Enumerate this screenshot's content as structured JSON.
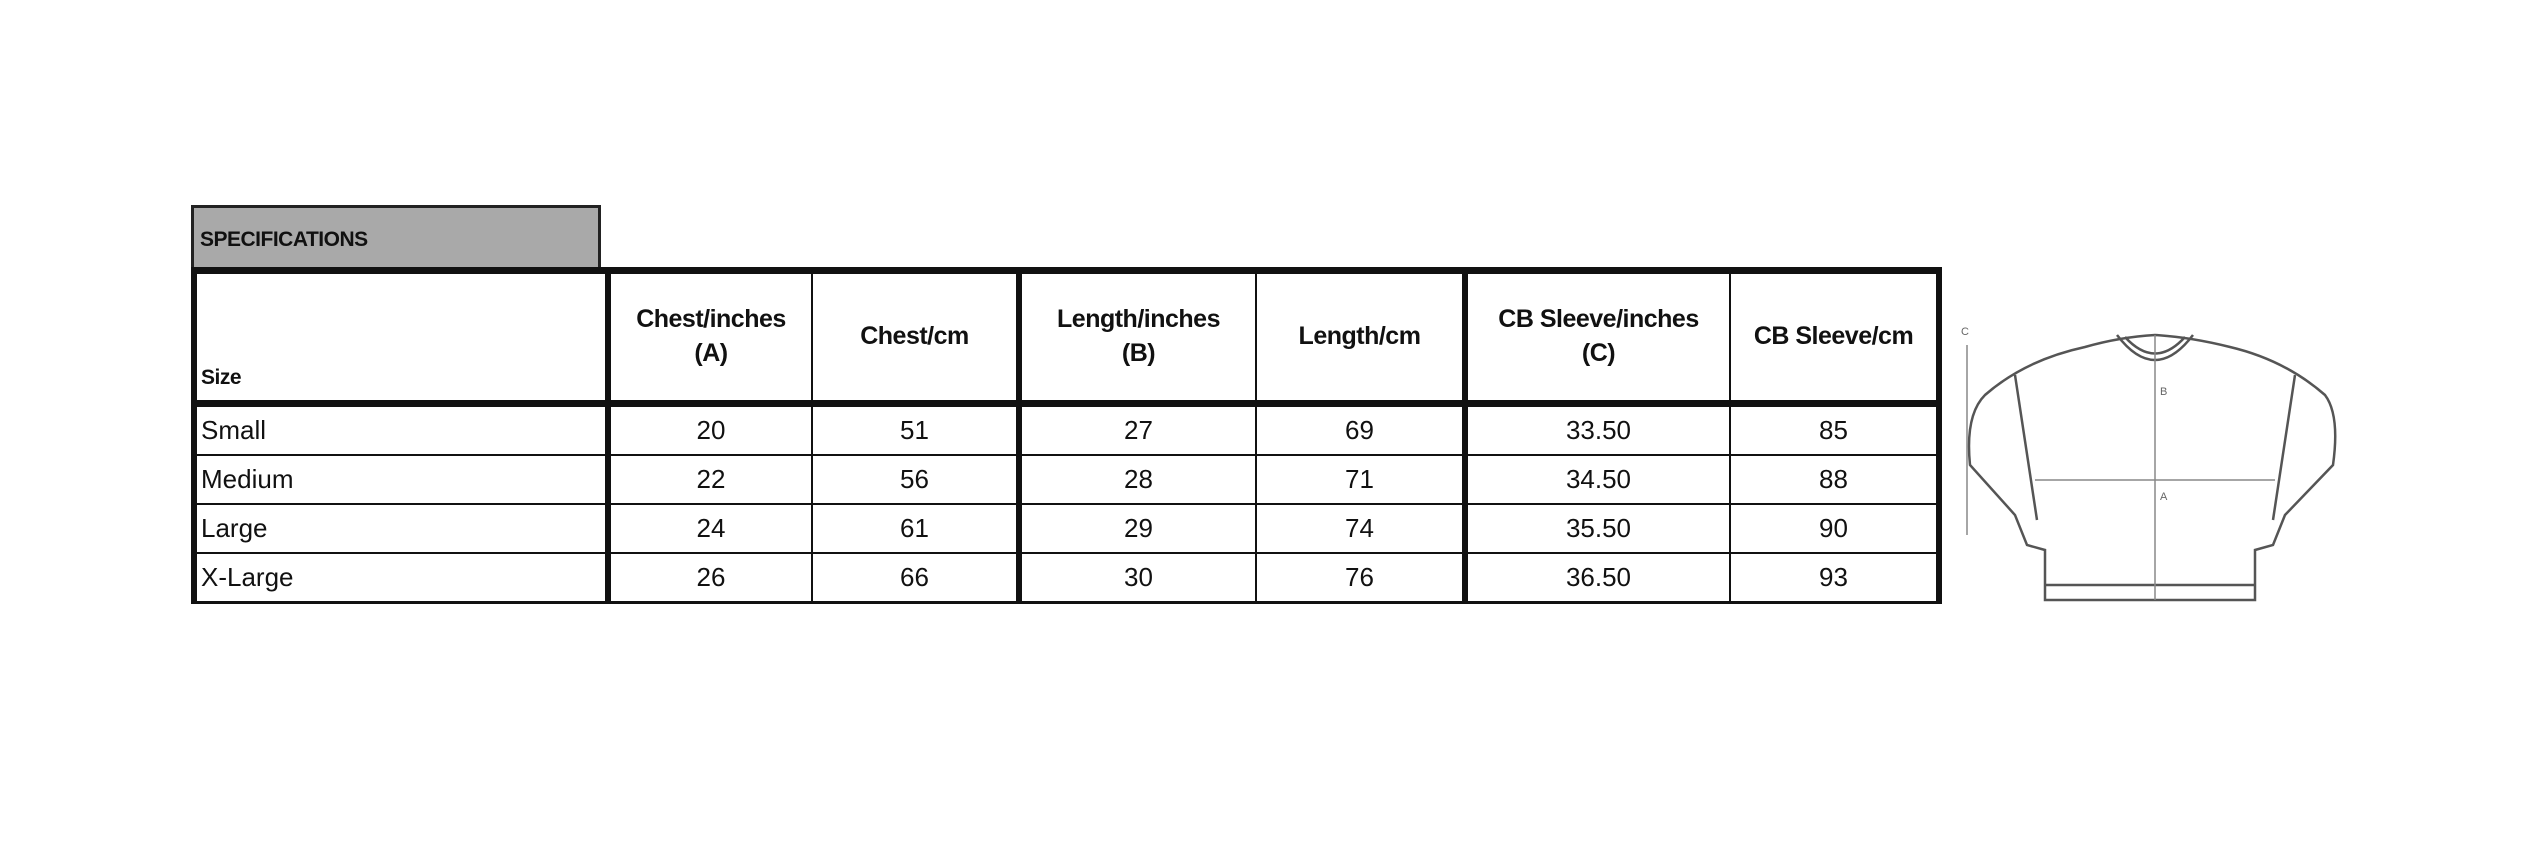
{
  "section_title": "SPECIFICATIONS",
  "table": {
    "size_header": "Size",
    "columns": [
      {
        "line1": "Chest/inches",
        "line2": "(A)"
      },
      {
        "line1": "Chest/cm",
        "line2": ""
      },
      {
        "line1": "Length/inches",
        "line2": "(B)"
      },
      {
        "line1": "Length/cm",
        "line2": ""
      },
      {
        "line1": "CB Sleeve/inches",
        "line2": "(C)"
      },
      {
        "line1": "CB Sleeve/cm",
        "line2": ""
      }
    ],
    "rows": [
      {
        "size": "Small",
        "values": [
          "20",
          "51",
          "27",
          "69",
          "33.50",
          "85"
        ]
      },
      {
        "size": "Medium",
        "values": [
          "22",
          "56",
          "28",
          "71",
          "34.50",
          "88"
        ]
      },
      {
        "size": "Large",
        "values": [
          "24",
          "61",
          "29",
          "74",
          "35.50",
          "90"
        ]
      },
      {
        "size": "X-Large",
        "values": [
          "26",
          "66",
          "30",
          "76",
          "36.50",
          "93"
        ]
      }
    ]
  },
  "diagram": {
    "labels": [
      "A",
      "B",
      "C"
    ]
  }
}
